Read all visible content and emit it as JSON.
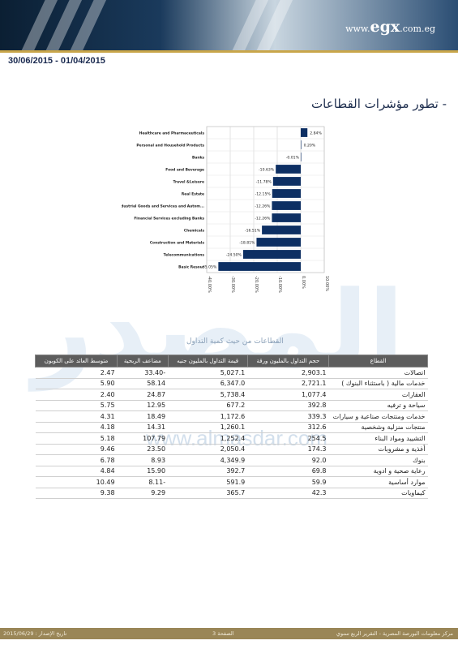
{
  "header": {
    "logo_prefix": "www.",
    "logo_main": "egx",
    "logo_suffix": ".com.eg",
    "date_range": "30/06/2015 - 01/04/2015"
  },
  "section_title": "- تطور مؤشرات القطاعات",
  "watermark": {
    "arabic": "المصدر",
    "url": "www.almasdar.com"
  },
  "chart_data": {
    "type": "bar",
    "orientation": "horizontal",
    "categories": [
      "Healthcare and Pharmaceuticals",
      "Personal and Household Products",
      "Banks",
      "Food and Beverage",
      "Travel &Leisure",
      "Real Estate",
      "Industrial Goods and Services and Autom...",
      "Financial Services excluding Banks",
      "Chemicals",
      "Construction and Materials",
      "Telecommunications",
      "Basic Resour"
    ],
    "values": [
      2.84,
      0.2,
      -0.01,
      -10.63,
      -11.78,
      -12.15,
      -12.26,
      -12.26,
      -16.51,
      -18.81,
      -24.5,
      -35.05
    ],
    "data_labels": [
      "2.84%",
      "0.20%",
      "-0.01%",
      "-10.63%",
      "-11.78%",
      "-12.15%",
      "-12.26%",
      "-12.26%",
      "-16.51%",
      "-18.81%",
      "-24.50%",
      "-35.05%"
    ],
    "xlim": [
      -40,
      10
    ],
    "x_ticks": [
      "-40.00%",
      "-30.00%",
      "-20.00%",
      "-10.00%",
      "0.00%",
      "10.00%"
    ],
    "grid": true,
    "color": "#0d2f63"
  },
  "table": {
    "caption": "القطاعات من حيث كمية التداول",
    "headers": [
      "القطاع",
      "حجم التداول بالمليون ورقة",
      "قيمة التداول بالمليون جنيه",
      "مضاعف الربحية",
      "متوسط العائد على الكوبون"
    ],
    "rows": [
      [
        "اتصالات",
        "2,903.1",
        "5,027.1",
        "33.40-",
        "2.47"
      ],
      [
        "خدمات مالية ( باستثناء البنوك )",
        "2,721.1",
        "6,347.0",
        "58.14",
        "5.90"
      ],
      [
        "العقارات",
        "1,077.4",
        "5,738.4",
        "24.87",
        "2.40"
      ],
      [
        "سياحة و ترفيه",
        "392.8",
        "677.2",
        "12.95",
        "5.75"
      ],
      [
        "خدمات ومنتجات صناعية و سيارات",
        "339.3",
        "1,172.6",
        "18.49",
        "4.31"
      ],
      [
        "منتجات منزلية وشخصية",
        "312.6",
        "1,260.1",
        "14.31",
        "4.18"
      ],
      [
        "التشييد ومواد البناء",
        "254.5",
        "1,252.4",
        "107.79",
        "5.18"
      ],
      [
        "أغذية و مشروبات",
        "174.3",
        "2,050.4",
        "23.50",
        "9.46"
      ],
      [
        "بنوك",
        "92.0",
        "4,349.9",
        "8.93",
        "6.78"
      ],
      [
        "رعاية صحية و ادوية",
        "69.8",
        "392.7",
        "15.90",
        "4.84"
      ],
      [
        "موارد أساسية",
        "59.9",
        "591.9",
        "8.11-",
        "10.49"
      ],
      [
        "كيماويات",
        "42.3",
        "365.7",
        "9.29",
        "9.38"
      ]
    ]
  },
  "footer": {
    "left": "تاريخ الإصدار : 2015/06/29",
    "center": "الصفحة 3",
    "right": "مركز معلومات البورصة المصرية - التقرير الربع سنوي"
  }
}
